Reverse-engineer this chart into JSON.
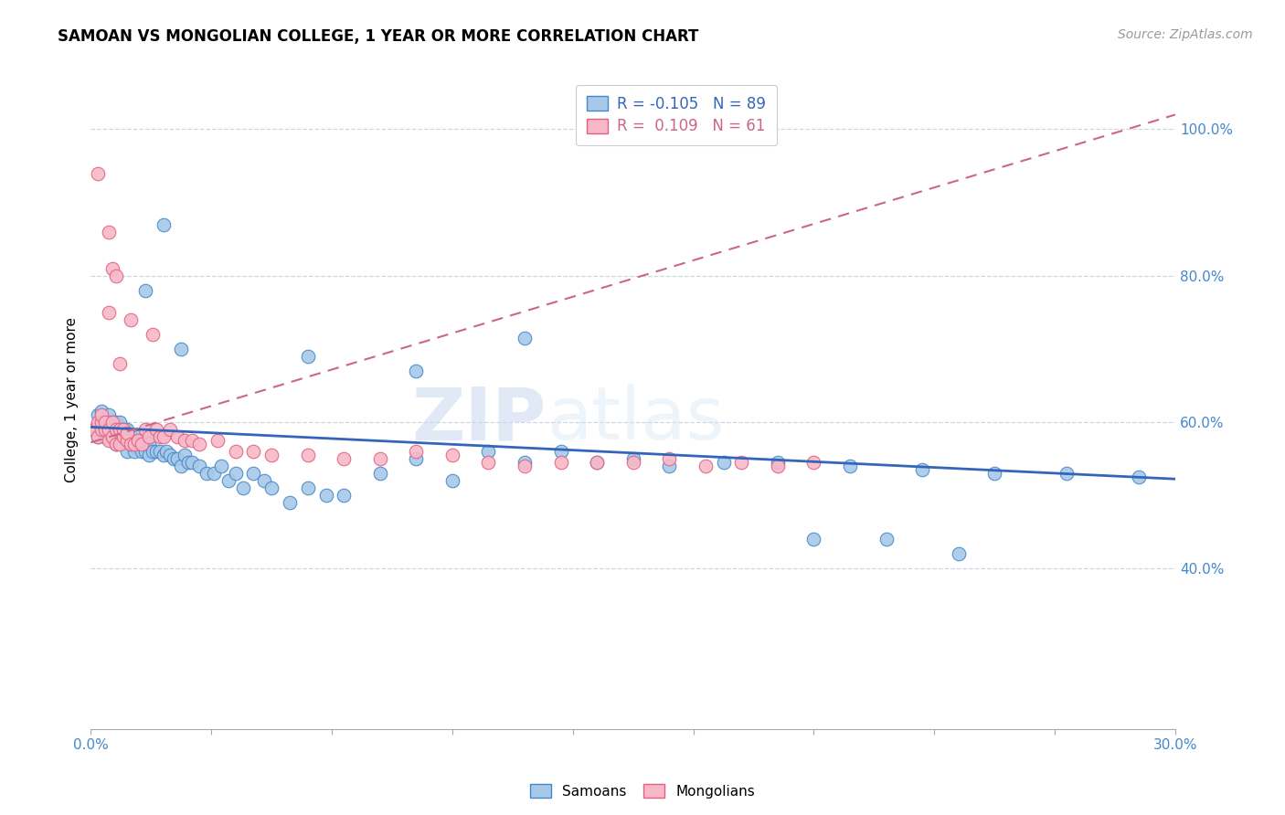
{
  "title": "SAMOAN VS MONGOLIAN COLLEGE, 1 YEAR OR MORE CORRELATION CHART",
  "source": "Source: ZipAtlas.com",
  "ylabel": "College, 1 year or more",
  "legend_blue_label": "Samoans",
  "legend_pink_label": "Mongolians",
  "R_blue": "-0.105",
  "N_blue": "89",
  "R_pink": "0.109",
  "N_pink": "61",
  "watermark_zip": "ZIP",
  "watermark_atlas": "atlas",
  "blue_scatter_color": "#a8c8e8",
  "blue_scatter_edge": "#4488cc",
  "pink_scatter_color": "#f8b8c8",
  "pink_scatter_edge": "#e06080",
  "trendline_blue_color": "#3366bb",
  "trendline_pink_color": "#cc6688",
  "tick_color": "#4488cc",
  "grid_color": "#c8d8e8",
  "background_color": "#ffffff",
  "xlim": [
    0.0,
    0.3
  ],
  "ylim": [
    0.18,
    1.08
  ],
  "yticks": [
    0.4,
    0.6,
    0.8,
    1.0
  ],
  "ytick_labels": [
    "40.0%",
    "60.0%",
    "80.0%",
    "100.0%"
  ],
  "samoans_x": [
    0.001,
    0.002,
    0.002,
    0.003,
    0.003,
    0.003,
    0.004,
    0.004,
    0.004,
    0.005,
    0.005,
    0.005,
    0.006,
    0.006,
    0.006,
    0.007,
    0.007,
    0.007,
    0.008,
    0.008,
    0.008,
    0.009,
    0.009,
    0.01,
    0.01,
    0.01,
    0.011,
    0.011,
    0.012,
    0.012,
    0.013,
    0.013,
    0.014,
    0.014,
    0.015,
    0.015,
    0.016,
    0.016,
    0.017,
    0.018,
    0.019,
    0.02,
    0.021,
    0.022,
    0.023,
    0.024,
    0.025,
    0.026,
    0.027,
    0.028,
    0.03,
    0.032,
    0.034,
    0.036,
    0.038,
    0.04,
    0.042,
    0.045,
    0.048,
    0.05,
    0.055,
    0.06,
    0.065,
    0.07,
    0.08,
    0.09,
    0.1,
    0.11,
    0.12,
    0.13,
    0.14,
    0.15,
    0.16,
    0.175,
    0.19,
    0.21,
    0.23,
    0.25,
    0.27,
    0.29,
    0.015,
    0.02,
    0.025,
    0.06,
    0.09,
    0.12,
    0.2,
    0.22,
    0.24
  ],
  "samoans_y": [
    0.59,
    0.58,
    0.61,
    0.59,
    0.605,
    0.615,
    0.58,
    0.595,
    0.6,
    0.59,
    0.6,
    0.61,
    0.58,
    0.595,
    0.6,
    0.57,
    0.59,
    0.6,
    0.58,
    0.59,
    0.6,
    0.575,
    0.59,
    0.56,
    0.575,
    0.59,
    0.57,
    0.58,
    0.56,
    0.575,
    0.57,
    0.58,
    0.56,
    0.575,
    0.56,
    0.575,
    0.555,
    0.57,
    0.56,
    0.56,
    0.56,
    0.555,
    0.56,
    0.555,
    0.55,
    0.55,
    0.54,
    0.555,
    0.545,
    0.545,
    0.54,
    0.53,
    0.53,
    0.54,
    0.52,
    0.53,
    0.51,
    0.53,
    0.52,
    0.51,
    0.49,
    0.51,
    0.5,
    0.5,
    0.53,
    0.55,
    0.52,
    0.56,
    0.545,
    0.56,
    0.545,
    0.55,
    0.54,
    0.545,
    0.545,
    0.54,
    0.535,
    0.53,
    0.53,
    0.525,
    0.78,
    0.87,
    0.7,
    0.69,
    0.67,
    0.715,
    0.44,
    0.44,
    0.42
  ],
  "mongolians_x": [
    0.001,
    0.002,
    0.002,
    0.003,
    0.003,
    0.003,
    0.004,
    0.004,
    0.005,
    0.005,
    0.005,
    0.006,
    0.006,
    0.007,
    0.007,
    0.008,
    0.008,
    0.009,
    0.009,
    0.01,
    0.01,
    0.011,
    0.011,
    0.012,
    0.013,
    0.014,
    0.015,
    0.016,
    0.017,
    0.018,
    0.019,
    0.02,
    0.022,
    0.024,
    0.026,
    0.028,
    0.03,
    0.035,
    0.04,
    0.045,
    0.05,
    0.06,
    0.07,
    0.08,
    0.09,
    0.1,
    0.11,
    0.12,
    0.13,
    0.14,
    0.15,
    0.16,
    0.17,
    0.18,
    0.19,
    0.2,
    0.005,
    0.006,
    0.007,
    0.008,
    0.002
  ],
  "mongolians_y": [
    0.59,
    0.58,
    0.6,
    0.59,
    0.6,
    0.61,
    0.59,
    0.6,
    0.575,
    0.59,
    0.75,
    0.58,
    0.6,
    0.57,
    0.59,
    0.57,
    0.59,
    0.58,
    0.59,
    0.575,
    0.585,
    0.57,
    0.74,
    0.57,
    0.575,
    0.57,
    0.59,
    0.58,
    0.72,
    0.59,
    0.58,
    0.58,
    0.59,
    0.58,
    0.575,
    0.575,
    0.57,
    0.575,
    0.56,
    0.56,
    0.555,
    0.555,
    0.55,
    0.55,
    0.56,
    0.555,
    0.545,
    0.54,
    0.545,
    0.545,
    0.545,
    0.55,
    0.54,
    0.545,
    0.54,
    0.545,
    0.86,
    0.81,
    0.8,
    0.68,
    0.94
  ]
}
